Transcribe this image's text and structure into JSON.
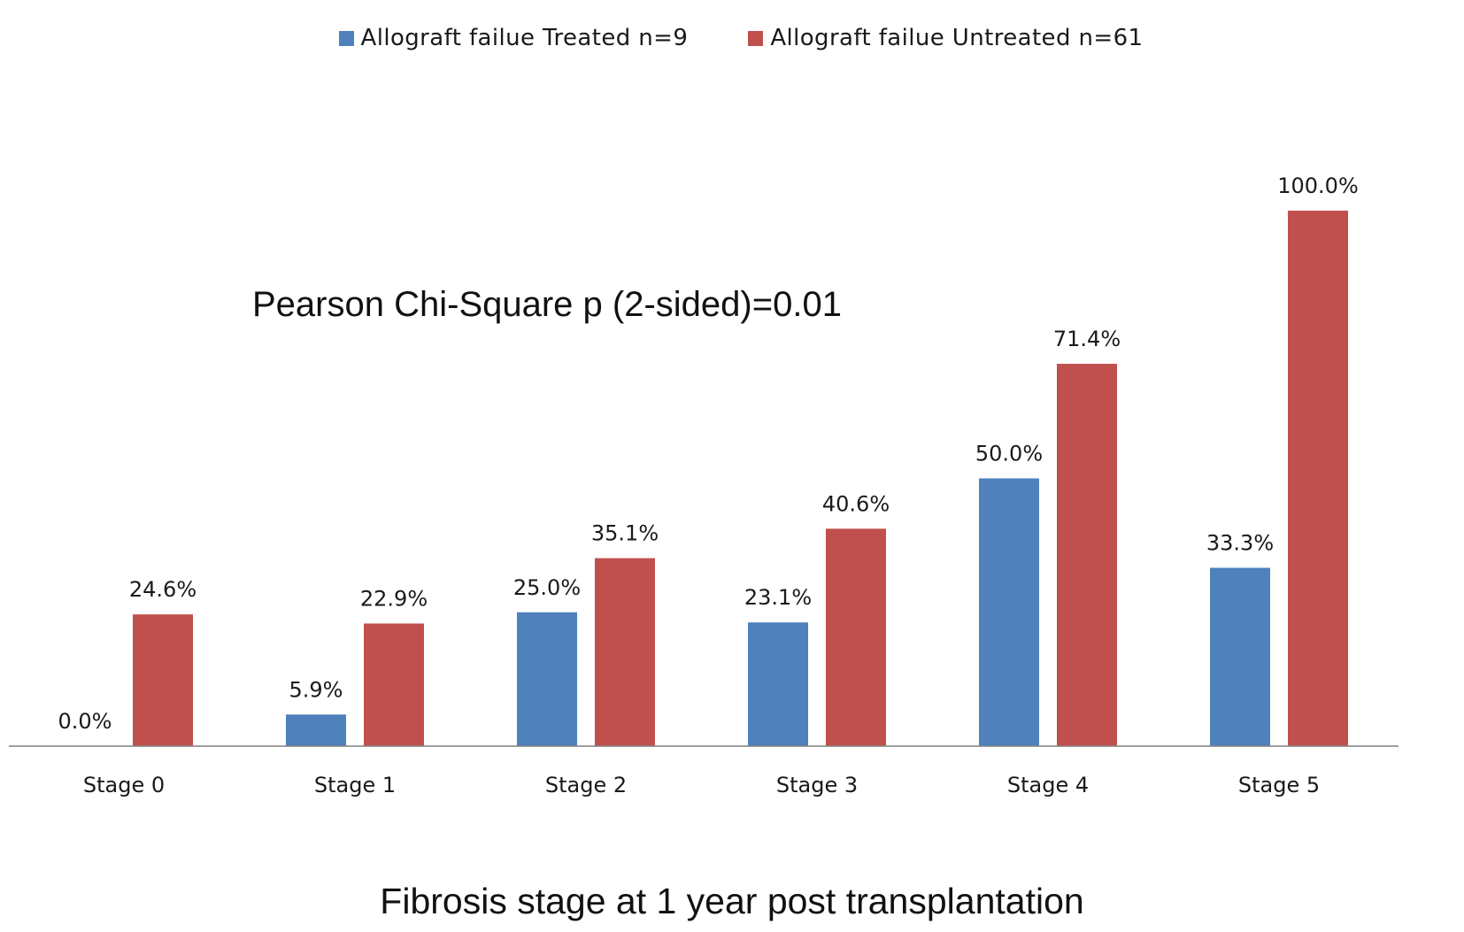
{
  "chart_data": {
    "type": "bar",
    "title": "",
    "annotation": "Pearson Chi-Square p (2-sided)=0.01",
    "xlabel": "Fibrosis stage at 1 year post transplantation",
    "ylabel": "",
    "categories": [
      "Stage 0",
      "Stage 1",
      "Stage 2",
      "Stage 3",
      "Stage 4",
      "Stage 5"
    ],
    "series": [
      {
        "name": "Allograft failue Treated n=9",
        "color": "#4F81BD",
        "values": [
          0.0,
          5.9,
          25.0,
          23.1,
          50.0,
          33.3
        ],
        "labels": [
          "0.0%",
          "5.9%",
          "25.0%",
          "23.1%",
          "50.0%",
          "33.3%"
        ]
      },
      {
        "name": "Allograft failue Untreated n=61",
        "color": "#C0504D",
        "values": [
          24.6,
          22.9,
          35.1,
          40.6,
          71.4,
          100.0
        ],
        "labels": [
          "24.6%",
          "22.9%",
          "35.1%",
          "40.6%",
          "71.4%",
          "100.0%"
        ]
      }
    ],
    "ylim": [
      0,
      100
    ],
    "grid": false,
    "y_axis_visible": false,
    "legend_position": "top-center",
    "axis_color": "#808080"
  }
}
